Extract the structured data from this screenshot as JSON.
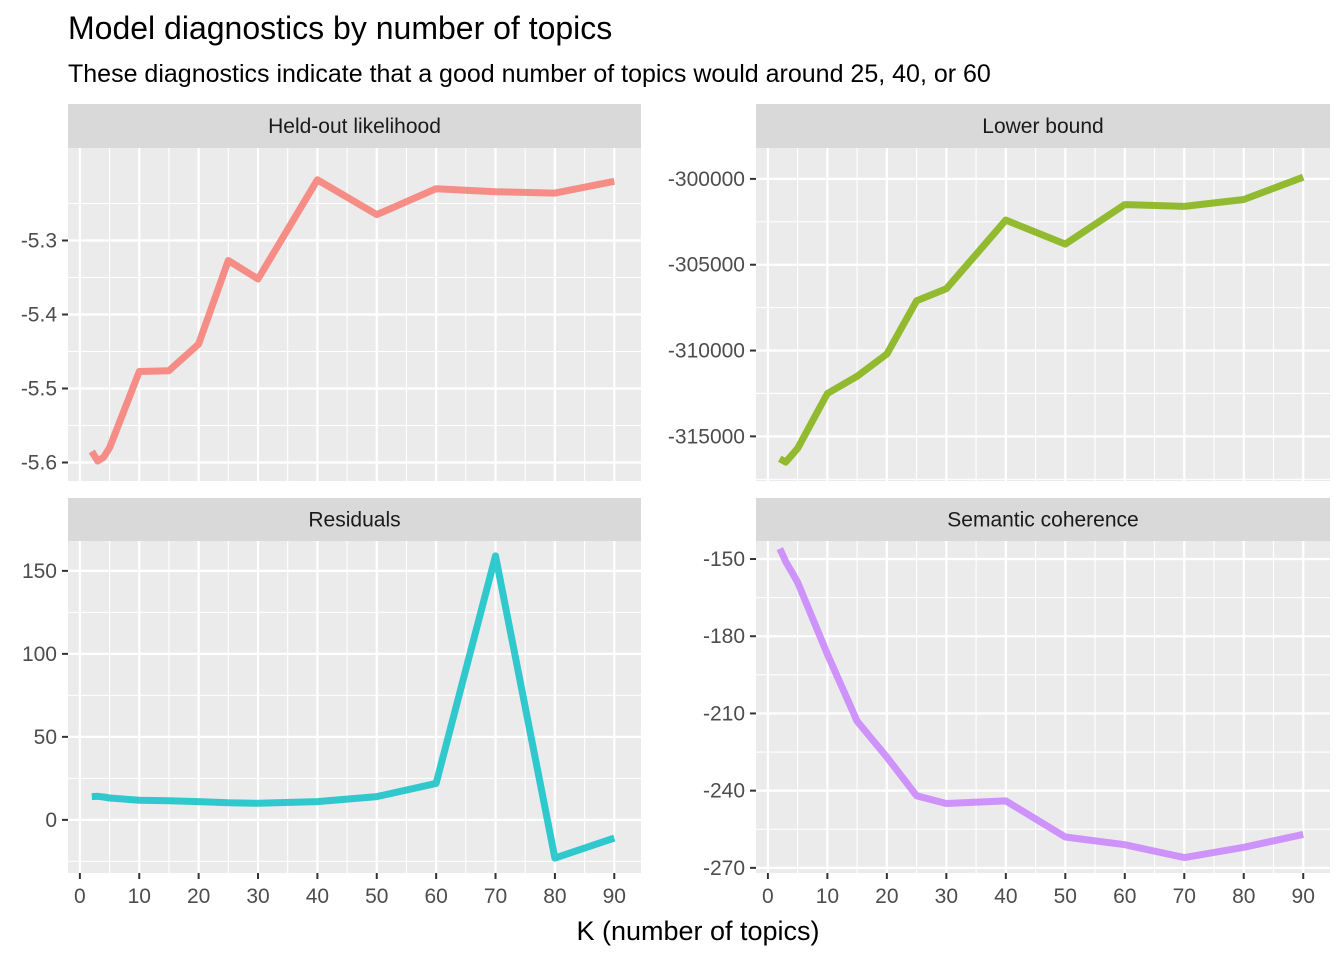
{
  "chart_data": {
    "type": "line",
    "title": "Model diagnostics by number of topics",
    "subtitle": "These diagnostics indicate that a good number of topics would around 25, 40, or 60",
    "xlabel": "K (number of topics)",
    "ylabel": "",
    "legend": "none",
    "grid": true,
    "xlim": [
      -2,
      94.5
    ],
    "x_ticks": [
      0,
      10,
      20,
      30,
      40,
      50,
      60,
      70,
      80,
      90
    ],
    "x_tick_labels": [
      "0",
      "10",
      "20",
      "30",
      "40",
      "50",
      "60",
      "70",
      "80",
      "90"
    ],
    "panels": [
      {
        "name": "Held-out likelihood",
        "color": "#F8766D",
        "ylim": [
          -5.625,
          -5.175
        ],
        "y_ticks": [
          -5.3,
          -5.4,
          -5.5,
          -5.6
        ],
        "y_tick_labels": [
          "-5.3",
          "-5.4",
          "-5.5",
          "-5.6"
        ],
        "x": [
          2,
          3,
          4,
          5,
          10,
          15,
          20,
          25,
          30,
          40,
          50,
          60,
          70,
          80,
          90
        ],
        "values": [
          -5.585,
          -5.598,
          -5.593,
          -5.58,
          -5.477,
          -5.476,
          -5.44,
          -5.327,
          -5.352,
          -5.218,
          -5.265,
          -5.23,
          -5.234,
          -5.236,
          -5.22
        ]
      },
      {
        "name": "Lower bound",
        "color": "#7CAE00",
        "ylim": [
          -317600,
          -298200
        ],
        "y_ticks": [
          -300000,
          -305000,
          -310000,
          -315000
        ],
        "y_tick_labels": [
          "-300000",
          "-305000",
          "-310000",
          "-315000"
        ],
        "x": [
          2,
          3,
          4,
          5,
          10,
          15,
          20,
          25,
          30,
          40,
          50,
          60,
          70,
          80,
          90
        ],
        "values": [
          -316300,
          -316500,
          -316100,
          -315700,
          -312500,
          -311500,
          -310200,
          -307100,
          -306400,
          -302400,
          -303800,
          -301500,
          -301600,
          -301200,
          -299900
        ]
      },
      {
        "name": "Residuals",
        "color": "#00BFC4",
        "ylim": [
          -32,
          168
        ],
        "y_ticks": [
          0,
          50,
          100,
          150
        ],
        "y_tick_labels": [
          "0",
          "50",
          "100",
          "150"
        ],
        "x": [
          2,
          3,
          4,
          5,
          10,
          15,
          20,
          25,
          30,
          40,
          50,
          60,
          70,
          80,
          90
        ],
        "values": [
          14,
          14.2,
          13.8,
          13.2,
          11.8,
          11.5,
          11,
          10.3,
          10,
          11,
          14,
          22,
          159,
          -23,
          -11
        ]
      },
      {
        "name": "Semantic coherence",
        "color": "#C77CFF",
        "ylim": [
          -272,
          -143
        ],
        "y_ticks": [
          -150,
          -180,
          -210,
          -240,
          -270
        ],
        "y_tick_labels": [
          "-150",
          "-180",
          "-210",
          "-240",
          "-270"
        ],
        "x": [
          2,
          3,
          4,
          5,
          10,
          15,
          20,
          25,
          30,
          40,
          50,
          60,
          70,
          80,
          90
        ],
        "values": [
          -146,
          -151,
          -155,
          -159,
          -187,
          -213,
          -227,
          -242,
          -245,
          -244,
          -258,
          -261,
          -266,
          -262,
          -257
        ]
      }
    ]
  }
}
